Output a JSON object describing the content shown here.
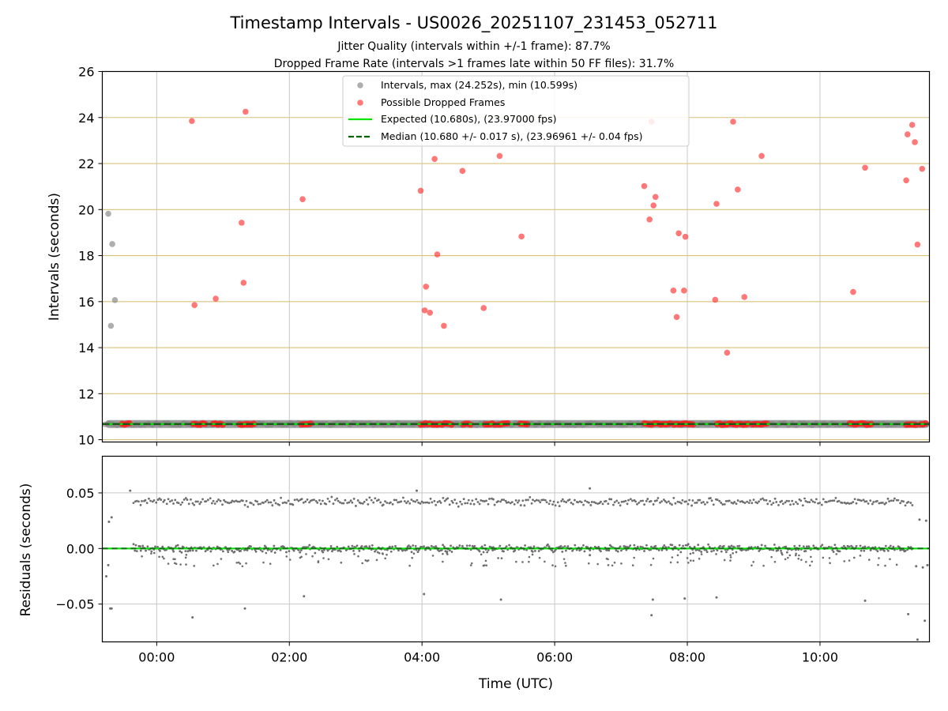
{
  "chart_data": {
    "type": "scatter",
    "title": "Timestamp Intervals - US0026_20251107_231453_052711",
    "subtitle_lines": [
      "Jitter Quality (intervals within +/-1 frame): 87.7%",
      "Dropped Frame Rate (intervals >1 frames late within 50 FF files): 31.7%"
    ],
    "xlabel": "Time (UTC)",
    "x_unit": "hours (UTC, 0 = 00:00)",
    "xlim": [
      -0.82,
      11.65
    ],
    "x_tick_values": [
      0,
      2,
      4,
      6,
      8,
      10
    ],
    "x_tick_labels": [
      "00:00",
      "02:00",
      "04:00",
      "06:00",
      "08:00",
      "10:00"
    ],
    "top_panel": {
      "ylabel": "Intervals (seconds)",
      "ylim": [
        9.9,
        26
      ],
      "y_ticks": [
        10,
        12,
        14,
        16,
        18,
        20,
        22,
        24,
        26
      ],
      "legend": {
        "position": "upper-center",
        "entries": [
          {
            "label": "Intervals, max (24.252s), min (10.599s)",
            "kind": "gray-dot"
          },
          {
            "label": "Possible Dropped Frames",
            "kind": "red-dot"
          },
          {
            "label": "Expected (10.680s), (23.97000 fps)",
            "kind": "green-line"
          },
          {
            "label": "Median (10.680 +/- 0.017 s), (23.96961 +/- 0.04 fps)",
            "kind": "dark-green-dashed"
          }
        ]
      },
      "expected_interval": 10.68,
      "median_interval": 10.68,
      "baseline_band": {
        "start": -0.78,
        "end": 11.65,
        "value": 10.68
      },
      "normal_outliers": [
        [
          -0.73,
          19.82
        ],
        [
          -0.67,
          18.5
        ],
        [
          -0.63,
          16.07
        ],
        [
          -0.69,
          14.95
        ]
      ],
      "dropped_frames": [
        [
          0.53,
          23.85
        ],
        [
          0.57,
          15.85
        ],
        [
          0.89,
          16.13
        ],
        [
          1.28,
          19.43
        ],
        [
          1.31,
          16.82
        ],
        [
          1.34,
          24.25
        ],
        [
          2.2,
          20.45
        ],
        [
          3.98,
          20.82
        ],
        [
          4.04,
          15.62
        ],
        [
          4.06,
          16.65
        ],
        [
          4.12,
          15.52
        ],
        [
          4.19,
          22.2
        ],
        [
          4.23,
          18.05
        ],
        [
          4.33,
          14.95
        ],
        [
          4.61,
          21.68
        ],
        [
          4.93,
          15.72
        ],
        [
          5.17,
          22.33
        ],
        [
          5.5,
          18.83
        ],
        [
          7.35,
          21.02
        ],
        [
          7.43,
          19.57
        ],
        [
          7.46,
          23.82
        ],
        [
          7.49,
          20.18
        ],
        [
          7.52,
          20.55
        ],
        [
          7.79,
          16.48
        ],
        [
          7.84,
          15.33
        ],
        [
          7.87,
          18.97
        ],
        [
          7.95,
          16.48
        ],
        [
          7.97,
          18.82
        ],
        [
          8.42,
          16.08
        ],
        [
          8.44,
          20.25
        ],
        [
          8.6,
          13.78
        ],
        [
          8.69,
          23.82
        ],
        [
          8.76,
          20.87
        ],
        [
          8.86,
          16.2
        ],
        [
          9.12,
          22.33
        ],
        [
          10.5,
          16.42
        ],
        [
          10.68,
          21.82
        ],
        [
          11.3,
          21.27
        ],
        [
          11.32,
          23.27
        ],
        [
          11.39,
          23.68
        ],
        [
          11.43,
          22.93
        ],
        [
          11.47,
          18.48
        ],
        [
          11.54,
          21.77
        ]
      ],
      "dropped_frame_clusters_near_baseline": [
        [
          -0.52,
          -0.38
        ],
        [
          0.55,
          0.75
        ],
        [
          0.85,
          1.02
        ],
        [
          1.25,
          1.48
        ],
        [
          2.18,
          2.35
        ],
        [
          3.98,
          4.45
        ],
        [
          4.62,
          4.75
        ],
        [
          4.95,
          5.1
        ],
        [
          5.15,
          5.3
        ],
        [
          5.48,
          5.62
        ],
        [
          7.35,
          7.75
        ],
        [
          7.8,
          8.12
        ],
        [
          8.45,
          8.95
        ],
        [
          8.98,
          9.2
        ],
        [
          10.45,
          10.8
        ],
        [
          11.3,
          11.45
        ],
        [
          11.52,
          11.65
        ]
      ]
    },
    "bottom_panel": {
      "ylabel": "Residuals (seconds)",
      "ylim": [
        -0.084,
        0.083
      ],
      "y_ticks": [
        -0.05,
        0.0,
        0.05
      ],
      "y_tick_labels": [
        "−0.05",
        "0.00",
        "0.05"
      ],
      "bands": [
        {
          "start": -0.35,
          "end": 11.4,
          "value": 0.042
        },
        {
          "start": -0.35,
          "end": 11.4,
          "value": 0.0
        }
      ],
      "residual_outliers": [
        [
          -0.76,
          -0.025
        ],
        [
          -0.73,
          -0.015
        ],
        [
          -0.7,
          -0.054
        ],
        [
          -0.68,
          -0.054
        ],
        [
          -0.72,
          0.024
        ],
        [
          -0.68,
          0.028
        ],
        [
          0.54,
          -0.062
        ],
        [
          1.33,
          -0.054
        ],
        [
          2.22,
          -0.043
        ],
        [
          4.03,
          -0.041
        ],
        [
          5.19,
          -0.046
        ],
        [
          7.48,
          -0.046
        ],
        [
          7.46,
          -0.06
        ],
        [
          7.96,
          -0.045
        ],
        [
          8.44,
          -0.044
        ],
        [
          10.68,
          -0.047
        ],
        [
          11.33,
          -0.059
        ],
        [
          11.47,
          -0.082
        ],
        [
          11.58,
          -0.065
        ],
        [
          11.5,
          0.026
        ],
        [
          11.6,
          0.025
        ],
        [
          11.45,
          -0.016
        ],
        [
          11.55,
          -0.017
        ],
        [
          11.62,
          -0.015
        ],
        [
          6.53,
          0.054
        ],
        [
          -0.4,
          0.052
        ],
        [
          3.92,
          0.052
        ],
        [
          6.53,
          -0.006
        ]
      ]
    }
  }
}
